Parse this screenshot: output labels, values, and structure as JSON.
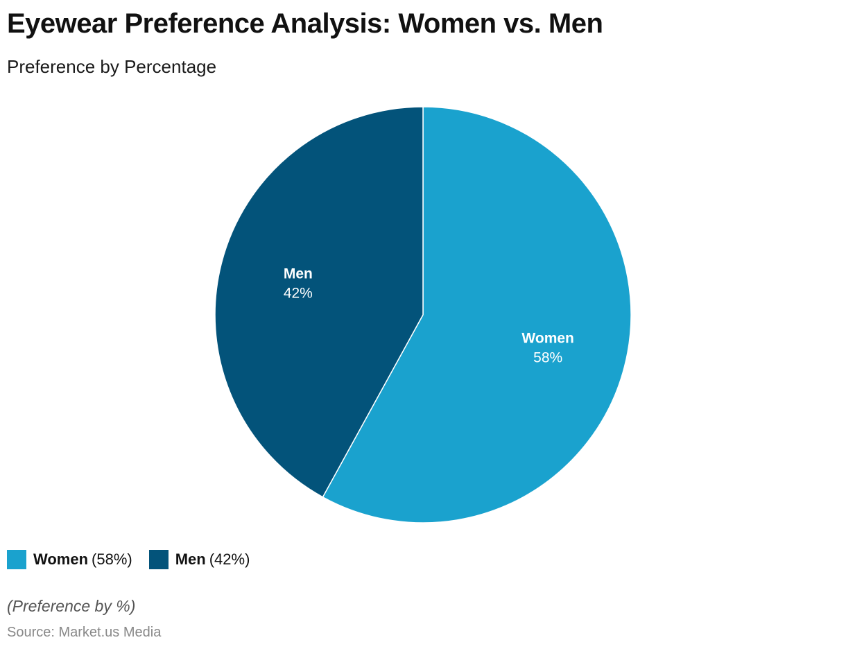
{
  "title": "Eyewear Preference Analysis: Women vs. Men",
  "subtitle": "Preference by Percentage",
  "chart_data": {
    "type": "pie",
    "categories": [
      "Women",
      "Men"
    ],
    "values": [
      58,
      42
    ],
    "unit": "%",
    "colors": [
      "#1aa2ce",
      "#03537a"
    ],
    "start_angle": "12 o'clock",
    "direction": "clockwise",
    "legend_position": "bottom-left",
    "slice_labels": [
      {
        "name": "Women",
        "value": "58%"
      },
      {
        "name": "Men",
        "value": "42%"
      }
    ]
  },
  "legend": [
    {
      "name": "Women",
      "value": "(58%)",
      "color": "#1aa2ce"
    },
    {
      "name": "Men",
      "value": "(42%)",
      "color": "#03537a"
    }
  ],
  "note": "(Preference by %)",
  "source": "Source: Market.us Media"
}
